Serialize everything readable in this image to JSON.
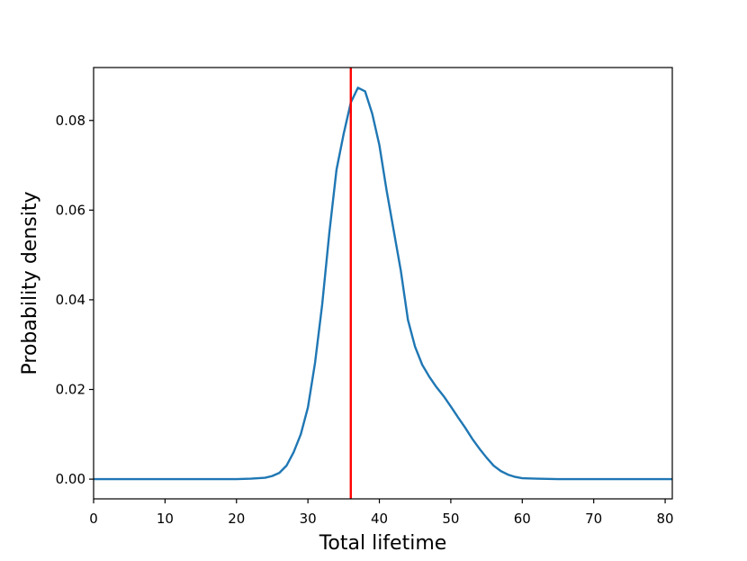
{
  "chart_data": {
    "type": "line",
    "title": "",
    "xlabel": "Total lifetime",
    "ylabel": "Probability density",
    "xlim": [
      0,
      81
    ],
    "ylim": [
      -0.0044,
      0.0918
    ],
    "xticks": [
      0,
      10,
      20,
      30,
      40,
      50,
      60,
      70,
      80
    ],
    "yticks": [
      0.0,
      0.02,
      0.04,
      0.06,
      0.08
    ],
    "ytick_labels": [
      "0.00",
      "0.02",
      "0.04",
      "0.06",
      "0.08"
    ],
    "grid": false,
    "legend": "none",
    "series": [
      {
        "color": "#1f77b4",
        "x": [
          0,
          10,
          20,
          22,
          24,
          25,
          26,
          27,
          28,
          29,
          30,
          31,
          32,
          33,
          34,
          35,
          36,
          37,
          38,
          39,
          40,
          41,
          42,
          43,
          44,
          45,
          46,
          47,
          48,
          49,
          50,
          51,
          52,
          53,
          54,
          55,
          56,
          57,
          58,
          59,
          60,
          62,
          65,
          70,
          81
        ],
        "y": [
          0.0,
          0.0,
          0.0,
          0.0001,
          0.0003,
          0.0007,
          0.0014,
          0.003,
          0.006,
          0.01,
          0.016,
          0.026,
          0.039,
          0.055,
          0.069,
          0.077,
          0.084,
          0.0873,
          0.0865,
          0.0815,
          0.0745,
          0.0645,
          0.0555,
          0.0465,
          0.0355,
          0.0295,
          0.0255,
          0.0228,
          0.0205,
          0.0185,
          0.0162,
          0.0138,
          0.0115,
          0.009,
          0.0068,
          0.0048,
          0.003,
          0.0018,
          0.001,
          0.0005,
          0.0002,
          0.0001,
          0.0,
          0.0,
          0.0
        ]
      }
    ],
    "vlines": [
      {
        "x": 36,
        "color": "#ff0000"
      }
    ]
  }
}
